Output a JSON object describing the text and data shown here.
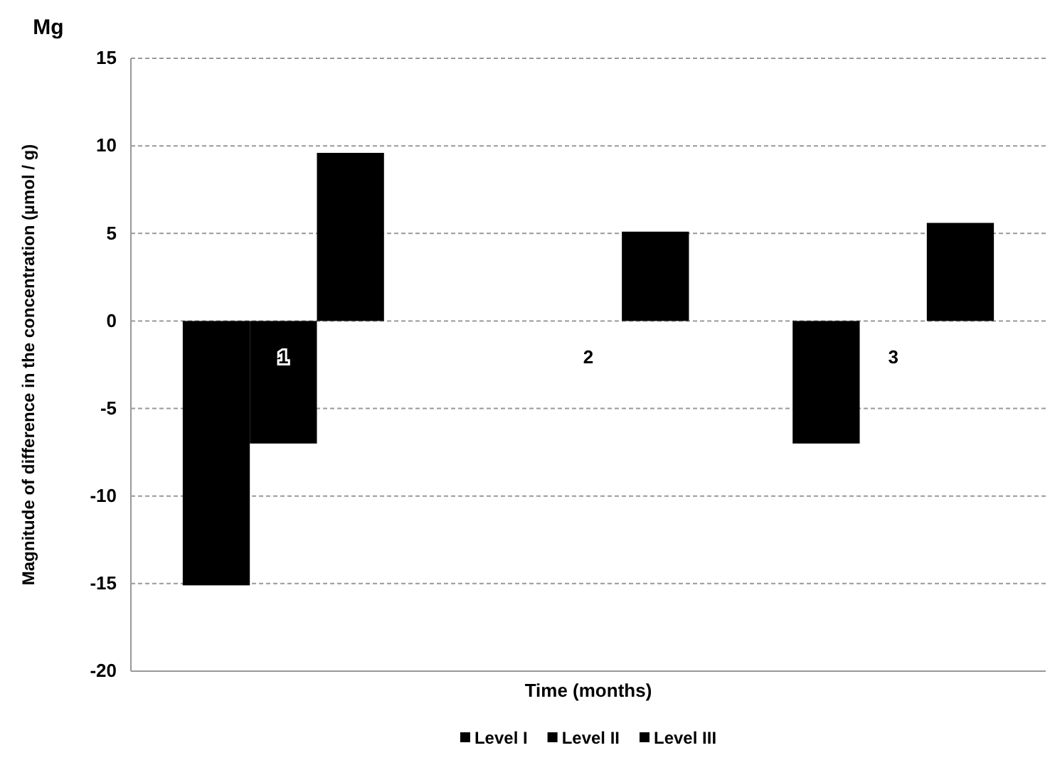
{
  "chart_data": {
    "type": "bar",
    "title": "Mg",
    "xlabel": "Time (months)",
    "ylabel": "Magnitude of difference in the concentration (µmol / g)",
    "categories": [
      "1",
      "2",
      "3"
    ],
    "series": [
      {
        "name": "Level I",
        "color": "#000000",
        "values": [
          -15.1,
          null,
          -7.0
        ]
      },
      {
        "name": "Level II",
        "color": "#000000",
        "values": [
          -7.0,
          null,
          null
        ]
      },
      {
        "name": "Level III",
        "color": "#000000",
        "values": [
          9.6,
          5.1,
          5.6
        ]
      }
    ],
    "ylim": [
      -20,
      15
    ],
    "yticks": [
      -20,
      -15,
      -10,
      -5,
      0,
      5,
      10,
      15
    ],
    "grid": "y",
    "legend": "bottom"
  }
}
